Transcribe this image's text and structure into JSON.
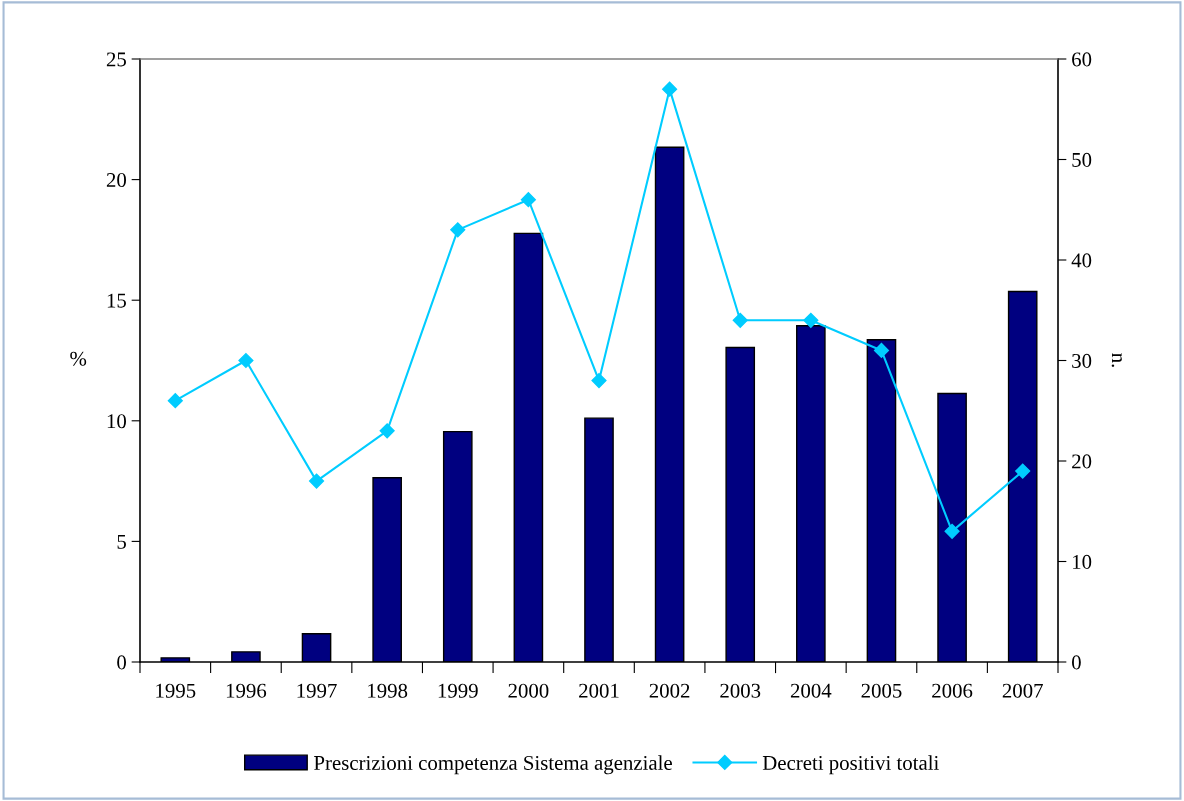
{
  "chart_data": {
    "type": "bar",
    "ylabel": "%",
    "y2label": "n.",
    "categories": [
      "1995",
      "1996",
      "1997",
      "1998",
      "1999",
      "2000",
      "2001",
      "2002",
      "2003",
      "2004",
      "2005",
      "2006",
      "2007"
    ],
    "series": [
      {
        "name": "Prescrizioni competenza Sistema agenziale",
        "color": "#000080",
        "values": [
          0.17,
          0.42,
          1.17,
          7.64,
          9.55,
          17.77,
          10.11,
          21.34,
          13.04,
          13.94,
          13.36,
          11.13,
          15.36
        ]
      },
      {
        "name": "Decreti positivi totali",
        "type": "line",
        "axis": "y2",
        "color": "#00ccff",
        "marker": "diamond",
        "values": [
          26,
          30,
          18,
          23,
          43,
          46,
          28,
          57,
          34,
          34,
          31,
          13,
          19
        ]
      }
    ],
    "ylim": [
      0,
      25
    ],
    "yticks": [
      0,
      5,
      10,
      15,
      20,
      25
    ],
    "y2lim": [
      0,
      60
    ],
    "y2ticks": [
      0,
      10,
      20,
      30,
      40,
      50,
      60
    ],
    "grid": false,
    "legend": "bottom"
  }
}
